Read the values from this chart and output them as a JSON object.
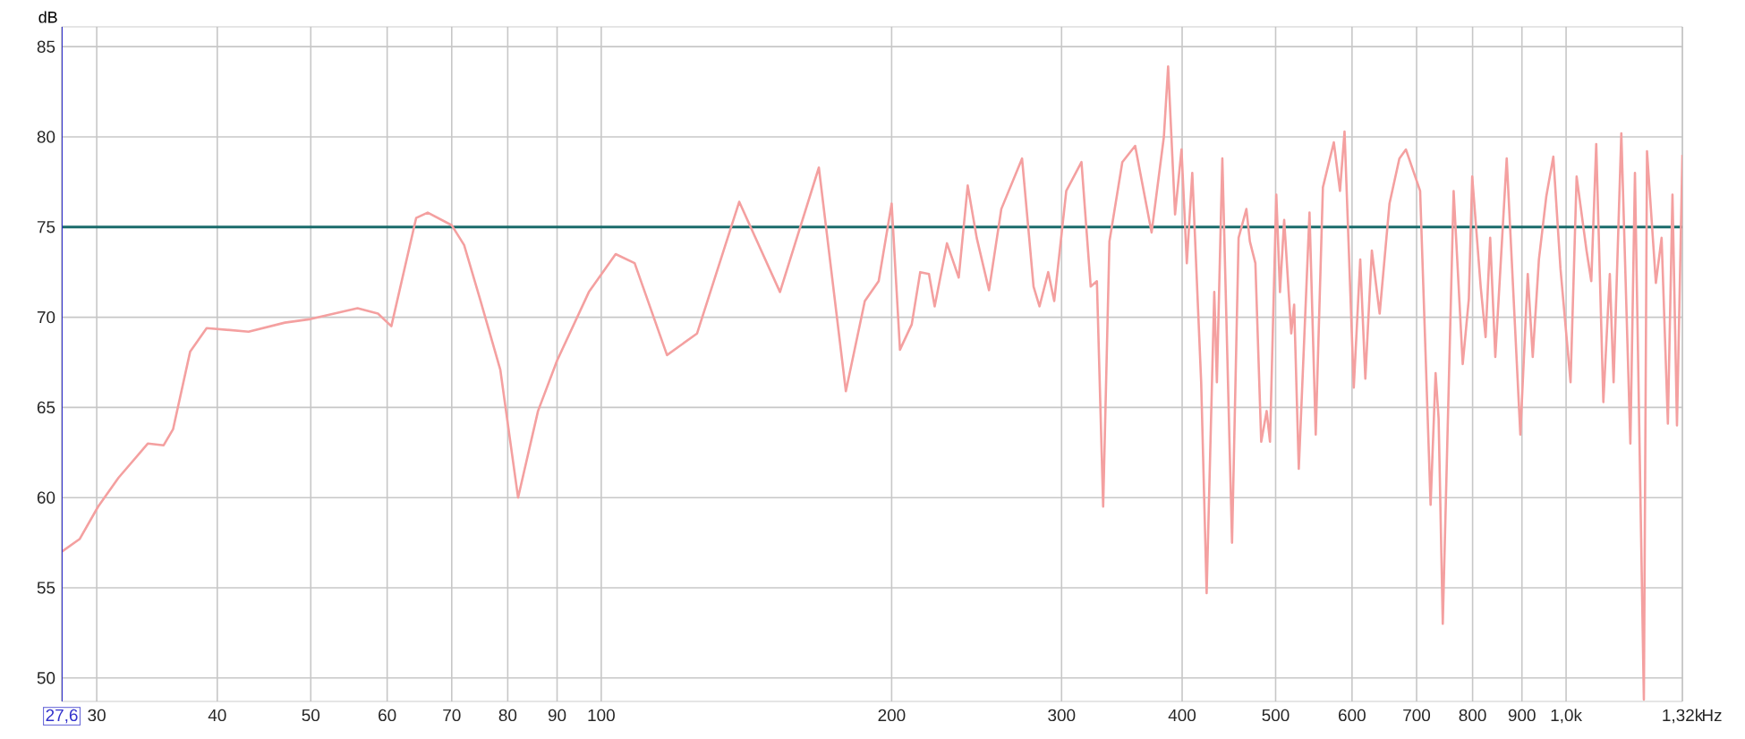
{
  "chart_data": {
    "type": "line",
    "ylabel": "dB",
    "xlabel": "Hz",
    "log": "x",
    "grid": true,
    "xlim": [
      27.6,
      1320
    ],
    "ylim": [
      48.7,
      86.1
    ],
    "xticks": [
      {
        "value": 27.6,
        "label": "27,6"
      },
      30,
      40,
      50,
      60,
      70,
      80,
      90,
      100,
      200,
      300,
      400,
      500,
      600,
      700,
      800,
      900,
      {
        "value": 1000,
        "label": "1,0k"
      },
      {
        "value": 1320,
        "label": "1,32k"
      }
    ],
    "yticks": [
      50,
      55,
      60,
      65,
      70,
      75,
      80,
      85
    ],
    "ref_lines": [
      {
        "axis": "y",
        "value": 75,
        "color": "#1a6b6b"
      }
    ],
    "x": [
      27.6,
      28.8,
      30.1,
      31.6,
      33.9,
      35.2,
      36.0,
      37.5,
      39.0,
      43.1,
      47.0,
      50,
      55.9,
      58.7,
      60.6,
      64.3,
      66.1,
      70,
      72.1,
      74.9,
      78.6,
      82.0,
      86.0,
      90,
      97.1,
      103.5,
      108.3,
      117.0,
      125.7,
      139.0,
      153.2,
      168.1,
      179.3,
      187.6,
      193.9,
      200,
      204.0,
      209.8,
      214.1,
      218.6,
      221.6,
      228.2,
      234.7,
      239.8,
      245.0,
      252.3,
      259.8,
      273.0,
      280.6,
      284.6,
      290.6,
      294.8,
      303.4,
      314.6,
      321.6,
      326.4,
      331.3,
      336.3,
      346.8,
      357.6,
      371.9,
      383,
      386.9,
      393.4,
      399.5,
      404.5,
      409.8,
      418.6,
      424.1,
      431.9,
      434.6,
      440.3,
      450.6,
      457.7,
      466.3,
      470.2,
      476.4,
      483.1,
      489.4,
      493.3,
      500.8,
      505.2,
      510.3,
      519.0,
      522.6,
      528.4,
      542.1,
      550.2,
      559.7,
      574.5,
      583.0,
      589.4,
      602.5,
      611.9,
      619.4,
      629.1,
      640.9,
      656.1,
      671.8,
      682.4,
      705.9,
      723.8,
      732.5,
      737.8,
      745.2,
      764.7,
      781.5,
      793.0,
      799.4,
      815.6,
      825.3,
      834.3,
      844.6,
      867.9,
      896.6,
      912.6,
      923.5,
      937.2,
      953.9,
      970,
      986.7,
      1010.7,
      1025.5,
      1050,
      1062,
      1074.6,
      1093,
      1110,
      1120,
      1140.9,
      1165.8,
      1178.6,
      1204,
      1213,
      1239,
      1256,
      1275,
      1289,
      1303,
      1320
    ],
    "series": [
      {
        "color": "#f4a0a0",
        "values": [
          57.0,
          57.7,
          59.5,
          61.1,
          63.0,
          62.9,
          63.8,
          68.1,
          69.4,
          69.2,
          69.7,
          69.9,
          70.5,
          70.2,
          69.5,
          75.5,
          75.8,
          75.1,
          74.0,
          71.0,
          67.1,
          60.0,
          64.8,
          67.6,
          71.4,
          73.5,
          73.0,
          67.9,
          69.1,
          76.4,
          71.4,
          78.3,
          65.9,
          70.9,
          72.0,
          76.3,
          68.2,
          69.6,
          72.5,
          72.4,
          70.6,
          74.1,
          72.2,
          77.3,
          74.4,
          71.5,
          76.0,
          78.8,
          71.7,
          70.6,
          72.5,
          70.9,
          77.0,
          78.6,
          71.7,
          72.0,
          59.5,
          74.2,
          78.6,
          79.5,
          74.7,
          80.0,
          83.9,
          75.7,
          79.3,
          73.0,
          78.0,
          66.4,
          54.7,
          71.4,
          66.4,
          78.8,
          57.5,
          74.4,
          76.0,
          74.2,
          73.0,
          63.1,
          64.8,
          63.1,
          76.8,
          71.4,
          75.4,
          69.1,
          70.7,
          61.6,
          75.8,
          63.5,
          77.2,
          79.7,
          77.0,
          80.3,
          66.1,
          73.2,
          66.6,
          73.7,
          70.2,
          76.3,
          78.8,
          79.3,
          77.0,
          59.6,
          66.9,
          64.4,
          53.0,
          77.0,
          67.4,
          71.0,
          77.8,
          71.7,
          68.9,
          74.4,
          67.8,
          78.8,
          63.5,
          72.4,
          67.8,
          73.2,
          76.7,
          78.9,
          72.7,
          66.4,
          77.8,
          73.7,
          72.0,
          79.6,
          65.3,
          72.4,
          66.4,
          80.2,
          63.0,
          78.0,
          48.8,
          79.2,
          71.9,
          74.4,
          64.1,
          76.8,
          64.0,
          79.0
        ]
      }
    ]
  }
}
